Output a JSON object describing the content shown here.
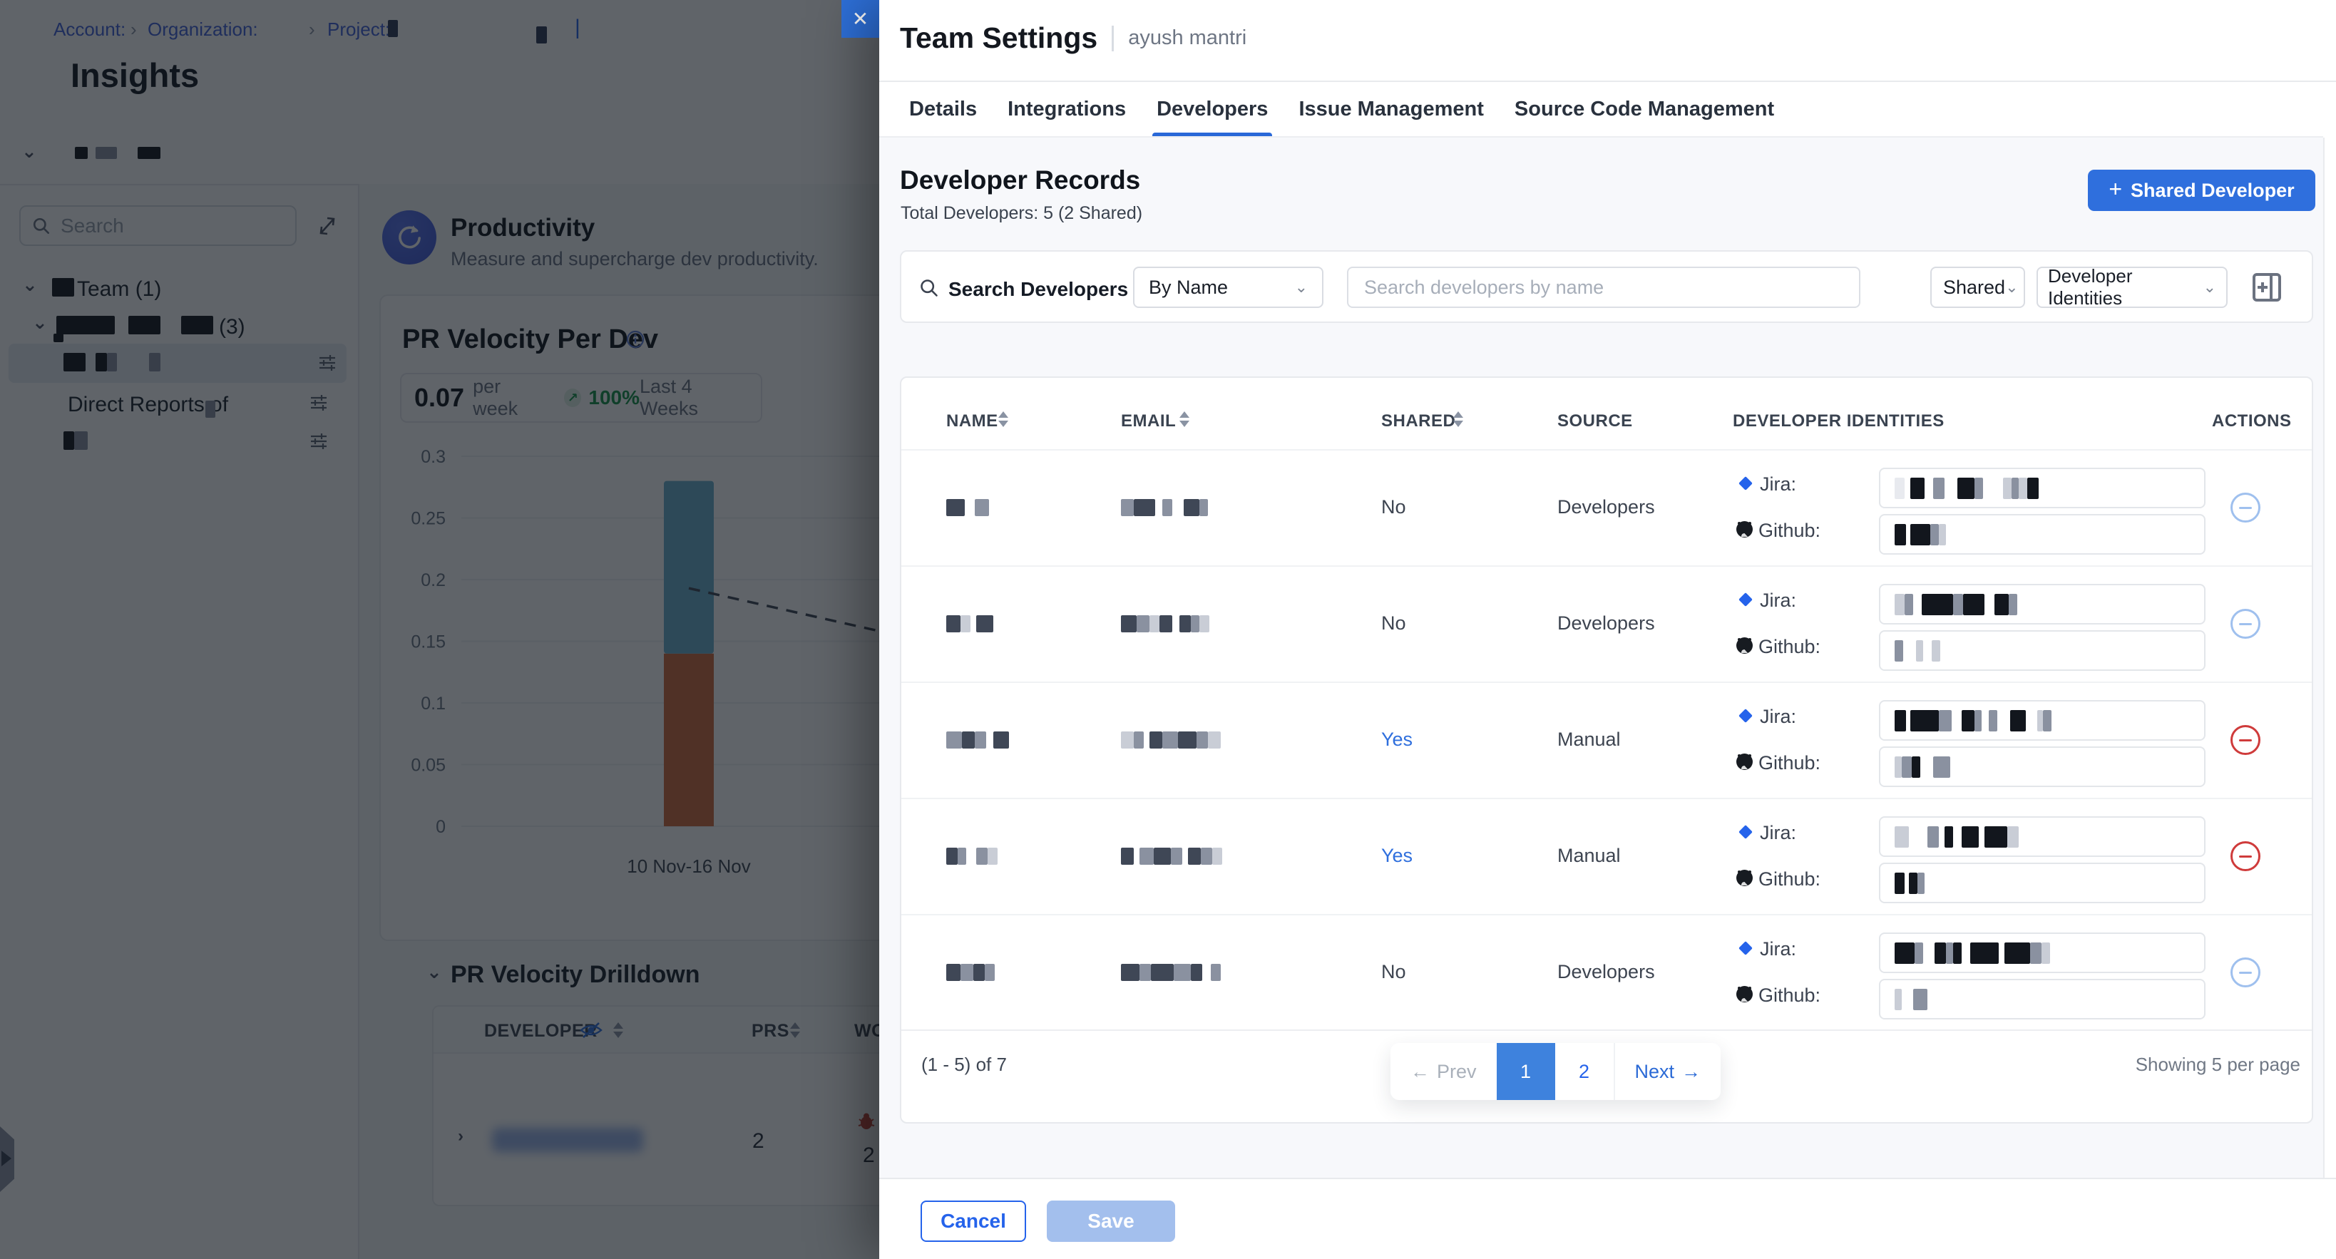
{
  "app": {
    "breadcrumb": {
      "account": "Account:",
      "organization": "Organization:",
      "project": "Project:"
    },
    "page_title": "Insights",
    "sidebar": {
      "search_placeholder": "Search",
      "tree": {
        "team_label": "Team (1)",
        "group_count": "(3)",
        "direct_reports_label": "Direct Reports of"
      }
    },
    "productivity": {
      "title": "Productivity",
      "subtitle": "Measure and supercharge dev productivity."
    },
    "metric_card": {
      "title": "PR Velocity Per Dev",
      "value": "0.07",
      "unit": "per week",
      "change": "100%",
      "period": "Last 4 Weeks"
    },
    "drilldown": {
      "title": "PR Velocity Drilldown",
      "columns": {
        "developer": "DEVELOPER",
        "prs": "PRS",
        "work": "WO"
      },
      "row": {
        "prs": "2",
        "bug_count": "2"
      }
    }
  },
  "chart_data": {
    "type": "bar",
    "stacked": true,
    "title": "PR Velocity Per Dev",
    "categories": [
      "10 Nov-16 Nov"
    ],
    "series": [
      {
        "name": "pr-velocity-lower-segment",
        "color": "#cf6a3c",
        "values": [
          0.14
        ]
      },
      {
        "name": "pr-velocity-upper-segment",
        "color": "#6bb0cd",
        "values": [
          0.14
        ]
      }
    ],
    "trend_line": {
      "style": "dashed",
      "from": 0.193,
      "to": 0.158,
      "color": "#3f4855"
    },
    "xlabel": "",
    "ylabel": "",
    "ylim": [
      0,
      0.3
    ],
    "yticks": [
      0,
      0.05,
      0.1,
      0.15,
      0.2,
      0.25,
      0.3
    ],
    "grid": true,
    "legend": false
  },
  "modal": {
    "title": "Team Settings",
    "subtitle": "ayush mantri",
    "tabs": [
      {
        "label": "Details",
        "active": false
      },
      {
        "label": "Integrations",
        "active": false
      },
      {
        "label": "Developers",
        "active": true
      },
      {
        "label": "Issue Management",
        "active": false
      },
      {
        "label": "Source Code Management",
        "active": false
      }
    ],
    "section": {
      "heading": "Developer Records",
      "total": "Total Developers: 5 (2 Shared)",
      "add_button": "Shared Developer"
    },
    "search": {
      "label": "Search Developers",
      "by_select": "By Name",
      "input_placeholder": "Search developers by name",
      "shared_filter": "Shared",
      "identities_filter": "Developer Identities"
    },
    "table": {
      "headers": {
        "name": "NAME",
        "email": "EMAIL",
        "shared": "SHARED",
        "source": "SOURCE",
        "identities": "DEVELOPER IDENTITIES",
        "actions": "ACTIONS"
      },
      "jira_label": "Jira:",
      "github_label": "Github:",
      "rows": [
        {
          "shared": "No",
          "source": "Developers",
          "removable": false
        },
        {
          "shared": "No",
          "source": "Developers",
          "removable": false
        },
        {
          "shared": "Yes",
          "source": "Manual",
          "removable": true
        },
        {
          "shared": "Yes",
          "source": "Manual",
          "removable": true
        },
        {
          "shared": "No",
          "source": "Developers",
          "removable": false
        }
      ]
    },
    "pagination": {
      "range": "(1 - 5) of 7",
      "prev": "Prev",
      "pages": [
        "1",
        "2"
      ],
      "active_page": "1",
      "next": "Next",
      "per_page": "Showing 5 per page"
    },
    "footer": {
      "cancel": "Cancel",
      "save": "Save"
    }
  },
  "colors": {
    "accent": "#2f6fdd",
    "active_page": "#3e82dd",
    "danger": "#cf3b3b",
    "success": "#169447",
    "link": "#2563eb"
  },
  "redactions": {
    "breadcrumb_project": [
      [
        "b",
        14
      ]
    ],
    "breadcrumb_far": [
      [
        "b",
        15
      ]
    ],
    "filter_row": [
      [
        "k",
        18
      ],
      [
        "t",
        11
      ],
      [
        "m",
        30
      ],
      [
        "t",
        29
      ],
      [
        "k",
        32
      ]
    ],
    "tree_team_prefix": [
      [
        "k",
        31
      ]
    ],
    "tree_group": [
      [
        "k",
        82
      ],
      [
        "t",
        19
      ],
      [
        "k",
        45
      ],
      [
        "t",
        29
      ],
      [
        "k",
        45
      ]
    ],
    "tree_group_sub": [
      [
        "k",
        14
      ]
    ],
    "tree_selected": [
      [
        "k",
        31
      ],
      [
        "t",
        14
      ],
      [
        "k",
        16
      ],
      [
        "m",
        14
      ],
      [
        "t",
        45
      ],
      [
        "m",
        16
      ]
    ],
    "tree_direct_suffix": [
      [
        "m",
        14
      ]
    ],
    "tree_last": [
      [
        "k",
        15
      ],
      [
        "m",
        19
      ]
    ],
    "rows": [
      {
        "name": [
          [
            "d",
            26
          ],
          [
            "t",
            14
          ],
          [
            "m",
            20
          ]
        ],
        "email": [
          [
            "m",
            18
          ],
          [
            "d",
            30
          ],
          [
            "t",
            10
          ],
          [
            "m",
            14
          ],
          [
            "t",
            16
          ],
          [
            "d",
            22
          ],
          [
            "m",
            12
          ]
        ],
        "jira": [
          [
            "w",
            14
          ],
          [
            "t",
            8
          ],
          [
            "k",
            20
          ],
          [
            "t",
            12
          ],
          [
            "m",
            16
          ],
          [
            "t",
            18
          ],
          [
            "k",
            24
          ],
          [
            "m",
            12
          ],
          [
            "t",
            28
          ],
          [
            "l",
            12
          ],
          [
            "m",
            10
          ],
          [
            "l",
            12
          ],
          [
            "k",
            16
          ]
        ],
        "github": [
          [
            "k",
            16
          ],
          [
            "t",
            6
          ],
          [
            "k",
            28
          ],
          [
            "m",
            12
          ],
          [
            "l",
            10
          ]
        ]
      },
      {
        "name": [
          [
            "d",
            20
          ],
          [
            "l",
            14
          ],
          [
            "t",
            8
          ],
          [
            "d",
            24
          ]
        ],
        "email": [
          [
            "d",
            22
          ],
          [
            "m",
            18
          ],
          [
            "l",
            14
          ],
          [
            "d",
            18
          ],
          [
            "t",
            10
          ],
          [
            "d",
            16
          ],
          [
            "m",
            12
          ],
          [
            "l",
            14
          ]
        ],
        "jira": [
          [
            "l",
            14
          ],
          [
            "m",
            12
          ],
          [
            "t",
            12
          ],
          [
            "k",
            44
          ],
          [
            "m",
            14
          ],
          [
            "k",
            30
          ],
          [
            "t",
            14
          ],
          [
            "k",
            20
          ],
          [
            "m",
            12
          ]
        ],
        "github": [
          [
            "m",
            12
          ],
          [
            "t",
            18
          ],
          [
            "l",
            10
          ],
          [
            "t",
            12
          ],
          [
            "l",
            12
          ]
        ]
      },
      {
        "name": [
          [
            "m",
            22
          ],
          [
            "d",
            18
          ],
          [
            "m",
            16
          ],
          [
            "t",
            10
          ],
          [
            "d",
            22
          ]
        ],
        "email": [
          [
            "l",
            18
          ],
          [
            "m",
            14
          ],
          [
            "t",
            8
          ],
          [
            "d",
            18
          ],
          [
            "m",
            22
          ],
          [
            "d",
            26
          ],
          [
            "m",
            16
          ],
          [
            "l",
            18
          ]
        ],
        "jira": [
          [
            "k",
            16
          ],
          [
            "t",
            6
          ],
          [
            "k",
            40
          ],
          [
            "m",
            18
          ],
          [
            "t",
            14
          ],
          [
            "k",
            18
          ],
          [
            "m",
            10
          ],
          [
            "t",
            10
          ],
          [
            "m",
            12
          ],
          [
            "t",
            18
          ],
          [
            "k",
            22
          ],
          [
            "t",
            16
          ],
          [
            "l",
            8
          ],
          [
            "m",
            12
          ]
        ],
        "github": [
          [
            "l",
            10
          ],
          [
            "m",
            14
          ],
          [
            "k",
            12
          ],
          [
            "t",
            18
          ],
          [
            "m",
            24
          ]
        ]
      },
      {
        "name": [
          [
            "d",
            16
          ],
          [
            "m",
            12
          ],
          [
            "t",
            14
          ],
          [
            "m",
            16
          ],
          [
            "l",
            14
          ]
        ],
        "email": [
          [
            "d",
            18
          ],
          [
            "t",
            8
          ],
          [
            "m",
            20
          ],
          [
            "d",
            24
          ],
          [
            "m",
            16
          ],
          [
            "t",
            8
          ],
          [
            "d",
            18
          ],
          [
            "m",
            16
          ],
          [
            "l",
            14
          ]
        ],
        "jira": [
          [
            "l",
            20
          ],
          [
            "t",
            26
          ],
          [
            "m",
            16
          ],
          [
            "t",
            8
          ],
          [
            "k",
            12
          ],
          [
            "t",
            12
          ],
          [
            "k",
            24
          ],
          [
            "t",
            8
          ],
          [
            "k",
            32
          ],
          [
            "l",
            16
          ]
        ],
        "github": [
          [
            "k",
            14
          ],
          [
            "t",
            6
          ],
          [
            "k",
            12
          ],
          [
            "m",
            10
          ]
        ]
      },
      {
        "name": [
          [
            "d",
            20
          ],
          [
            "m",
            18
          ],
          [
            "d",
            16
          ],
          [
            "m",
            14
          ]
        ],
        "email": [
          [
            "d",
            26
          ],
          [
            "m",
            16
          ],
          [
            "d",
            32
          ],
          [
            "m",
            24
          ],
          [
            "d",
            16
          ],
          [
            "t",
            12
          ],
          [
            "m",
            14
          ]
        ],
        "jira": [
          [
            "k",
            28
          ],
          [
            "m",
            12
          ],
          [
            "t",
            16
          ],
          [
            "k",
            16
          ],
          [
            "m",
            10
          ],
          [
            "k",
            12
          ],
          [
            "t",
            12
          ],
          [
            "k",
            40
          ],
          [
            "t",
            8
          ],
          [
            "k",
            36
          ],
          [
            "m",
            16
          ],
          [
            "l",
            12
          ]
        ],
        "github": [
          [
            "l",
            10
          ],
          [
            "t",
            16
          ],
          [
            "m",
            20
          ]
        ]
      }
    ]
  }
}
